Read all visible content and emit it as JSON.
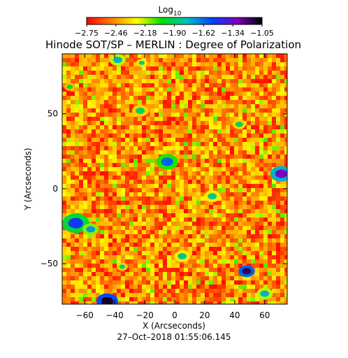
{
  "chart_data": {
    "type": "heatmap",
    "title": "Hinode SOT/SP – MERLIN : Degree of Polarization",
    "colorbar": {
      "label_base": "Log",
      "label_sub": "10",
      "ticks": [
        "−2.75",
        "−2.46",
        "−2.18",
        "−1.90",
        "−1.62",
        "−1.34",
        "−1.05"
      ],
      "range": [
        -2.75,
        -1.05
      ],
      "colormap": [
        "#ff0000",
        "#ff8000",
        "#ffff00",
        "#00e000",
        "#00c0c0",
        "#0040ff",
        "#8000c0",
        "#000000"
      ]
    },
    "xlabel": "X (Arcseconds)",
    "ylabel": "Y (Arcseconds)",
    "xlim": [
      -75,
      75
    ],
    "ylim": [
      -77,
      90
    ],
    "xticks": [
      -60,
      -40,
      -20,
      0,
      20,
      40,
      60
    ],
    "xtick_labels": [
      "−60",
      "−40",
      "−20",
      "0",
      "20",
      "40",
      "60"
    ],
    "yticks": [
      -50,
      0,
      50
    ],
    "ytick_labels": [
      "−50",
      "0",
      "50"
    ],
    "timestamp": "27–Oct–2018 01:55:06.145",
    "background_level": -2.6,
    "patches": [
      {
        "x": -38,
        "y": 86,
        "r": 3,
        "level": -1.75
      },
      {
        "x": -22,
        "y": 84,
        "r": 2,
        "level": -1.85
      },
      {
        "x": -70,
        "y": 68,
        "r": 2,
        "level": -1.95
      },
      {
        "x": -23,
        "y": 52,
        "r": 3,
        "level": -1.9
      },
      {
        "x": 43,
        "y": 43,
        "r": 2.5,
        "level": -1.9
      },
      {
        "x": -5,
        "y": 18,
        "r": 4,
        "level": -1.6
      },
      {
        "x": 71,
        "y": 10,
        "r": 4,
        "level": -1.3
      },
      {
        "x": 25,
        "y": -5,
        "r": 3,
        "level": -1.85
      },
      {
        "x": -66,
        "y": -23,
        "r": 5,
        "level": -1.5
      },
      {
        "x": -56,
        "y": -27,
        "r": 3,
        "level": -1.7
      },
      {
        "x": 5,
        "y": -45,
        "r": 3,
        "level": -1.85
      },
      {
        "x": 48,
        "y": -55,
        "r": 3,
        "level": -1.15
      },
      {
        "x": -35,
        "y": -52,
        "r": 2,
        "level": -1.9
      },
      {
        "x": -45,
        "y": -75,
        "r": 4,
        "level": -1.1
      },
      {
        "x": 60,
        "y": -70,
        "r": 3,
        "level": -1.75
      }
    ]
  }
}
